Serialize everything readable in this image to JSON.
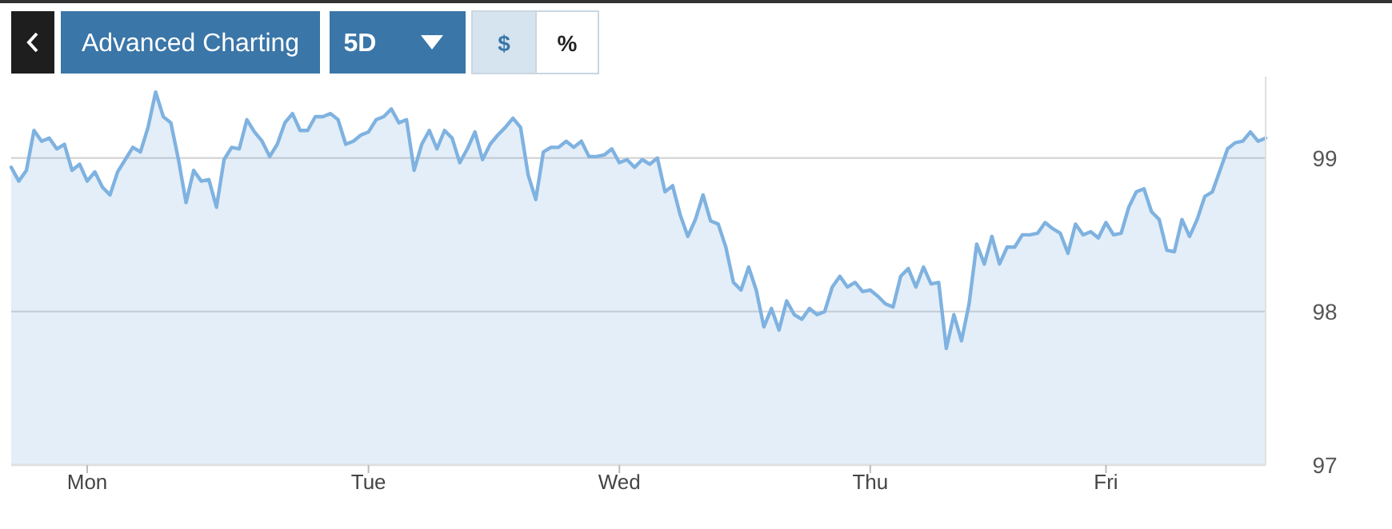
{
  "chart_data": {
    "type": "area",
    "color": "#7fb2e0",
    "values": [
      98.94,
      98.85,
      98.92,
      99.18,
      99.11,
      99.13,
      99.06,
      99.09,
      98.92,
      98.96,
      98.85,
      98.91,
      98.81,
      98.76,
      98.91,
      98.99,
      99.07,
      99.04,
      99.2,
      99.43,
      99.27,
      99.23,
      98.99,
      98.71,
      98.92,
      98.85,
      98.86,
      98.68,
      98.99,
      99.07,
      99.06,
      99.25,
      99.17,
      99.11,
      99.01,
      99.09,
      99.23,
      99.29,
      99.18,
      99.18,
      99.27,
      99.27,
      99.29,
      99.25,
      99.09,
      99.11,
      99.15,
      99.17,
      99.25,
      99.27,
      99.32,
      99.23,
      99.25,
      98.92,
      99.09,
      99.18,
      99.06,
      99.18,
      99.13,
      98.97,
      99.06,
      99.17,
      98.99,
      99.09,
      99.15,
      99.2,
      99.26,
      99.2,
      98.89,
      98.73,
      99.04,
      99.07,
      99.07,
      99.11,
      99.07,
      99.11,
      99.01,
      99.01,
      99.02,
      99.06,
      98.97,
      98.99,
      98.94,
      98.99,
      98.96,
      99.0,
      98.78,
      98.82,
      98.63,
      98.49,
      98.6,
      98.76,
      98.59,
      98.57,
      98.42,
      98.19,
      98.14,
      98.29,
      98.14,
      97.9,
      98.02,
      97.88,
      98.07,
      97.98,
      97.95,
      98.02,
      97.98,
      98.0,
      98.16,
      98.23,
      98.16,
      98.19,
      98.13,
      98.14,
      98.1,
      98.05,
      98.03,
      98.23,
      98.28,
      98.16,
      98.29,
      98.18,
      98.19,
      97.76,
      97.98,
      97.81,
      98.05,
      98.44,
      98.31,
      98.49,
      98.31,
      98.42,
      98.42,
      98.5,
      98.5,
      98.51,
      98.58,
      98.54,
      98.51,
      98.38,
      98.57,
      98.5,
      98.52,
      98.48,
      98.58,
      98.5,
      98.51,
      98.68,
      98.78,
      98.8,
      98.65,
      98.6,
      98.4,
      98.39,
      98.6,
      98.49,
      98.6,
      98.75,
      98.78,
      98.92,
      99.06,
      99.1,
      99.11,
      99.17,
      99.11,
      99.13
    ],
    "categories": [
      null,
      null,
      null,
      null,
      null,
      null,
      null,
      null,
      null,
      null,
      "Mon",
      null,
      null,
      null,
      null,
      null,
      null,
      null,
      null,
      null,
      null,
      null,
      null,
      null,
      null,
      null,
      null,
      null,
      null,
      null,
      null,
      null,
      null,
      null,
      null,
      null,
      null,
      null,
      null,
      null,
      null,
      null,
      null,
      null,
      null,
      null,
      null,
      "Tue",
      null,
      null,
      null,
      null,
      null,
      null,
      null,
      null,
      null,
      null,
      null,
      null,
      null,
      null,
      null,
      null,
      null,
      null,
      null,
      null,
      null,
      null,
      null,
      null,
      null,
      null,
      null,
      null,
      null,
      null,
      null,
      null,
      "Wed",
      null,
      null,
      null,
      null,
      null,
      null,
      null,
      null,
      null,
      null,
      null,
      null,
      null,
      null,
      null,
      null,
      null,
      null,
      null,
      null,
      null,
      null,
      null,
      null,
      null,
      null,
      null,
      null,
      null,
      null,
      null,
      null,
      "Thu",
      null,
      null,
      null,
      null,
      null,
      null,
      null,
      null,
      null,
      null,
      null,
      null,
      null,
      null,
      null,
      null,
      null,
      null,
      null,
      null,
      null,
      null,
      null,
      null,
      null,
      null,
      null,
      null,
      null,
      null,
      "Fri",
      null,
      null,
      null,
      null,
      null,
      null,
      null,
      null,
      null,
      null,
      null,
      null,
      null,
      null,
      null,
      null,
      null,
      null,
      null,
      null,
      null
    ],
    "ylim": [
      97,
      99.53
    ],
    "yticks": [
      97,
      98,
      99
    ],
    "grid": "y",
    "annotations": [
      "Advanced Charting",
      "5D",
      "$",
      "%"
    ]
  }
}
